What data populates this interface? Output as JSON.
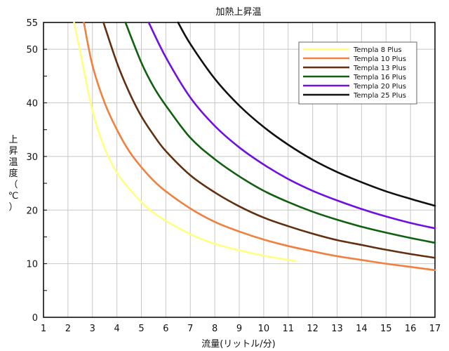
{
  "chart_data": {
    "type": "line",
    "title": "加熱上昇温",
    "xlabel": "流量(リットル/分)",
    "ylabel": "上昇温度（℃）",
    "ylabel_chars": [
      "上",
      "昇",
      "温",
      "度",
      "（",
      "℃",
      "）"
    ],
    "xlim": [
      1,
      17
    ],
    "ylim": [
      0,
      55
    ],
    "x_ticks": [
      1,
      2,
      3,
      4,
      5,
      6,
      7,
      8,
      9,
      10,
      11,
      12,
      13,
      14,
      15,
      16,
      17
    ],
    "y_ticks": [
      0,
      10,
      20,
      30,
      40,
      50,
      55
    ],
    "y_minor_step": 5,
    "grid": true,
    "legend_position": "top-right",
    "series": [
      {
        "name": "Templa 8 Plus",
        "color": "#ffff80",
        "x": [
          2.25,
          2.5,
          3,
          3.5,
          4,
          4.5,
          5,
          5.5,
          6,
          7,
          8,
          9,
          10,
          11,
          11.3
        ],
        "y": [
          55,
          49.5,
          38.5,
          31.5,
          27,
          24,
          21.5,
          19.5,
          18,
          15.5,
          13.7,
          12.5,
          11.5,
          10.7,
          10.5
        ]
      },
      {
        "name": "Templa 10 Plus",
        "color": "#f08040",
        "x": [
          2.65,
          3,
          3.5,
          4,
          4.5,
          5,
          5.5,
          6,
          7,
          8,
          9,
          10,
          11,
          12,
          13,
          14,
          15,
          16,
          17
        ],
        "y": [
          55,
          47,
          40,
          35,
          31,
          28,
          25.5,
          23.5,
          20.3,
          17.8,
          16,
          14.5,
          13.3,
          12.3,
          11.4,
          10.7,
          10,
          9.4,
          8.8
        ]
      },
      {
        "name": "Templa 13 Plus",
        "color": "#603010",
        "x": [
          3.45,
          4,
          4.5,
          5,
          5.5,
          6,
          7,
          8,
          9,
          10,
          11,
          12,
          13,
          14,
          15,
          16,
          17
        ],
        "y": [
          55,
          47.5,
          42,
          37.5,
          34,
          31,
          26.5,
          23.3,
          20.7,
          18.6,
          17,
          15.6,
          14.4,
          13.5,
          12.6,
          11.8,
          11.1
        ]
      },
      {
        "name": "Templa 16 Plus",
        "color": "#106010",
        "x": [
          4.35,
          5,
          5.5,
          6,
          7,
          8,
          9,
          10,
          11,
          12,
          13,
          14,
          15,
          16,
          17
        ],
        "y": [
          55,
          47.5,
          43,
          39.5,
          33.5,
          29.5,
          26.3,
          23.6,
          21.5,
          19.7,
          18.2,
          16.9,
          15.8,
          14.8,
          13.9
        ]
      },
      {
        "name": "Templa 20 Plus",
        "color": "#7010e0",
        "x": [
          5.3,
          6,
          7,
          8,
          9,
          10,
          11,
          12,
          13,
          14,
          15,
          16,
          17
        ],
        "y": [
          55,
          48.5,
          41,
          35.7,
          31.7,
          28.5,
          25.8,
          23.6,
          21.8,
          20.2,
          18.8,
          17.6,
          16.6
        ]
      },
      {
        "name": "Templa 25 Plus",
        "color": "#101010",
        "x": [
          6.5,
          7,
          8,
          9,
          10,
          11,
          12,
          13,
          14,
          15,
          16,
          17
        ],
        "y": [
          55,
          51,
          44.5,
          39.5,
          35.5,
          32.2,
          29.4,
          27.1,
          25.2,
          23.5,
          22.1,
          20.8
        ]
      }
    ]
  }
}
